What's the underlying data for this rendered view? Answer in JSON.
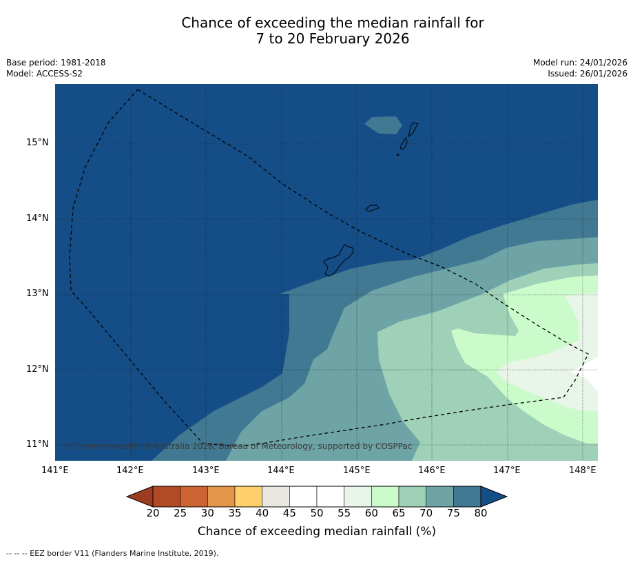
{
  "title": {
    "line1": "Chance of exceeding the median rainfall for",
    "line2": "7 to 20 February 2026"
  },
  "meta": {
    "base_period": "Base period: 1981-2018",
    "model": "Model: ACCESS-S2",
    "model_run": "Model run: 24/01/2026",
    "issued": "Issued: 26/01/2026"
  },
  "map": {
    "lon_labels": [
      "141°E",
      "142°E",
      "143°E",
      "144°E",
      "145°E",
      "146°E",
      "147°E",
      "148°E"
    ],
    "lat_labels": [
      "15°N",
      "14°N",
      "13°N",
      "12°N",
      "11°N"
    ],
    "copyright": "© Commonwealth of Australia 2026, Bureau of Meteorology, supported by COSPPac",
    "gridlines": "dotted"
  },
  "colorbar": {
    "title": "Chance of exceeding median rainfall (%)",
    "tick_labels": [
      "20",
      "25",
      "30",
      "35",
      "40",
      "45",
      "50",
      "55",
      "60",
      "65",
      "70",
      "75",
      "80"
    ],
    "colors": [
      "#b34a26",
      "#cd6434",
      "#e3954a",
      "#fdd06b",
      "#e8e8e1",
      "#ffffff",
      "#ffffff",
      "#e8f5e8",
      "#cbfbcb",
      "#9fd0b8",
      "#6ea4a6",
      "#417993"
    ],
    "under_color": "#9c3d22",
    "over_color": "#154d87"
  },
  "footnote": "--  --  -- EEZ border V11 (Flanders Marine Institute, 2019)."
}
